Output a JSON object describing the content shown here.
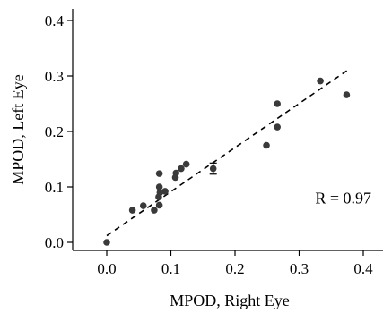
{
  "chart_data": {
    "type": "scatter",
    "xlabel": "MPOD, Right Eye",
    "ylabel": "MPOD, Left Eye",
    "xlim": [
      -0.03,
      0.41
    ],
    "ylim": [
      -0.015,
      0.43
    ],
    "xticks": [
      0.0,
      0.1,
      0.2,
      0.3,
      0.4
    ],
    "yticks": [
      0.0,
      0.1,
      0.2,
      0.3,
      0.4
    ],
    "xtick_labels": [
      "0.0",
      "0.1",
      "0.2",
      "0.3",
      "0.4"
    ],
    "ytick_labels": [
      "0.0",
      "0.1",
      "0.2",
      "0.3",
      "0.4"
    ],
    "points": [
      {
        "x": 0.0,
        "y": 0.0
      },
      {
        "x": 0.04,
        "y": 0.058
      },
      {
        "x": 0.057,
        "y": 0.066
      },
      {
        "x": 0.074,
        "y": 0.058
      },
      {
        "x": 0.082,
        "y": 0.067
      },
      {
        "x": 0.081,
        "y": 0.082
      },
      {
        "x": 0.083,
        "y": 0.09
      },
      {
        "x": 0.091,
        "y": 0.092
      },
      {
        "x": 0.082,
        "y": 0.1
      },
      {
        "x": 0.082,
        "y": 0.124
      },
      {
        "x": 0.107,
        "y": 0.117
      },
      {
        "x": 0.108,
        "y": 0.125
      },
      {
        "x": 0.116,
        "y": 0.133
      },
      {
        "x": 0.124,
        "y": 0.141
      },
      {
        "x": 0.166,
        "y": 0.133,
        "err": 0.01
      },
      {
        "x": 0.249,
        "y": 0.175
      },
      {
        "x": 0.266,
        "y": 0.208
      },
      {
        "x": 0.266,
        "y": 0.25
      },
      {
        "x": 0.333,
        "y": 0.291
      },
      {
        "x": 0.374,
        "y": 0.266
      }
    ],
    "fit_line": {
      "x": [
        0.0,
        0.375
      ],
      "y": [
        0.012,
        0.31
      ]
    },
    "annotation": "R = 0.97",
    "annotation_pos": {
      "x": 0.325,
      "y": 0.08
    },
    "grid": false,
    "legend": false
  }
}
